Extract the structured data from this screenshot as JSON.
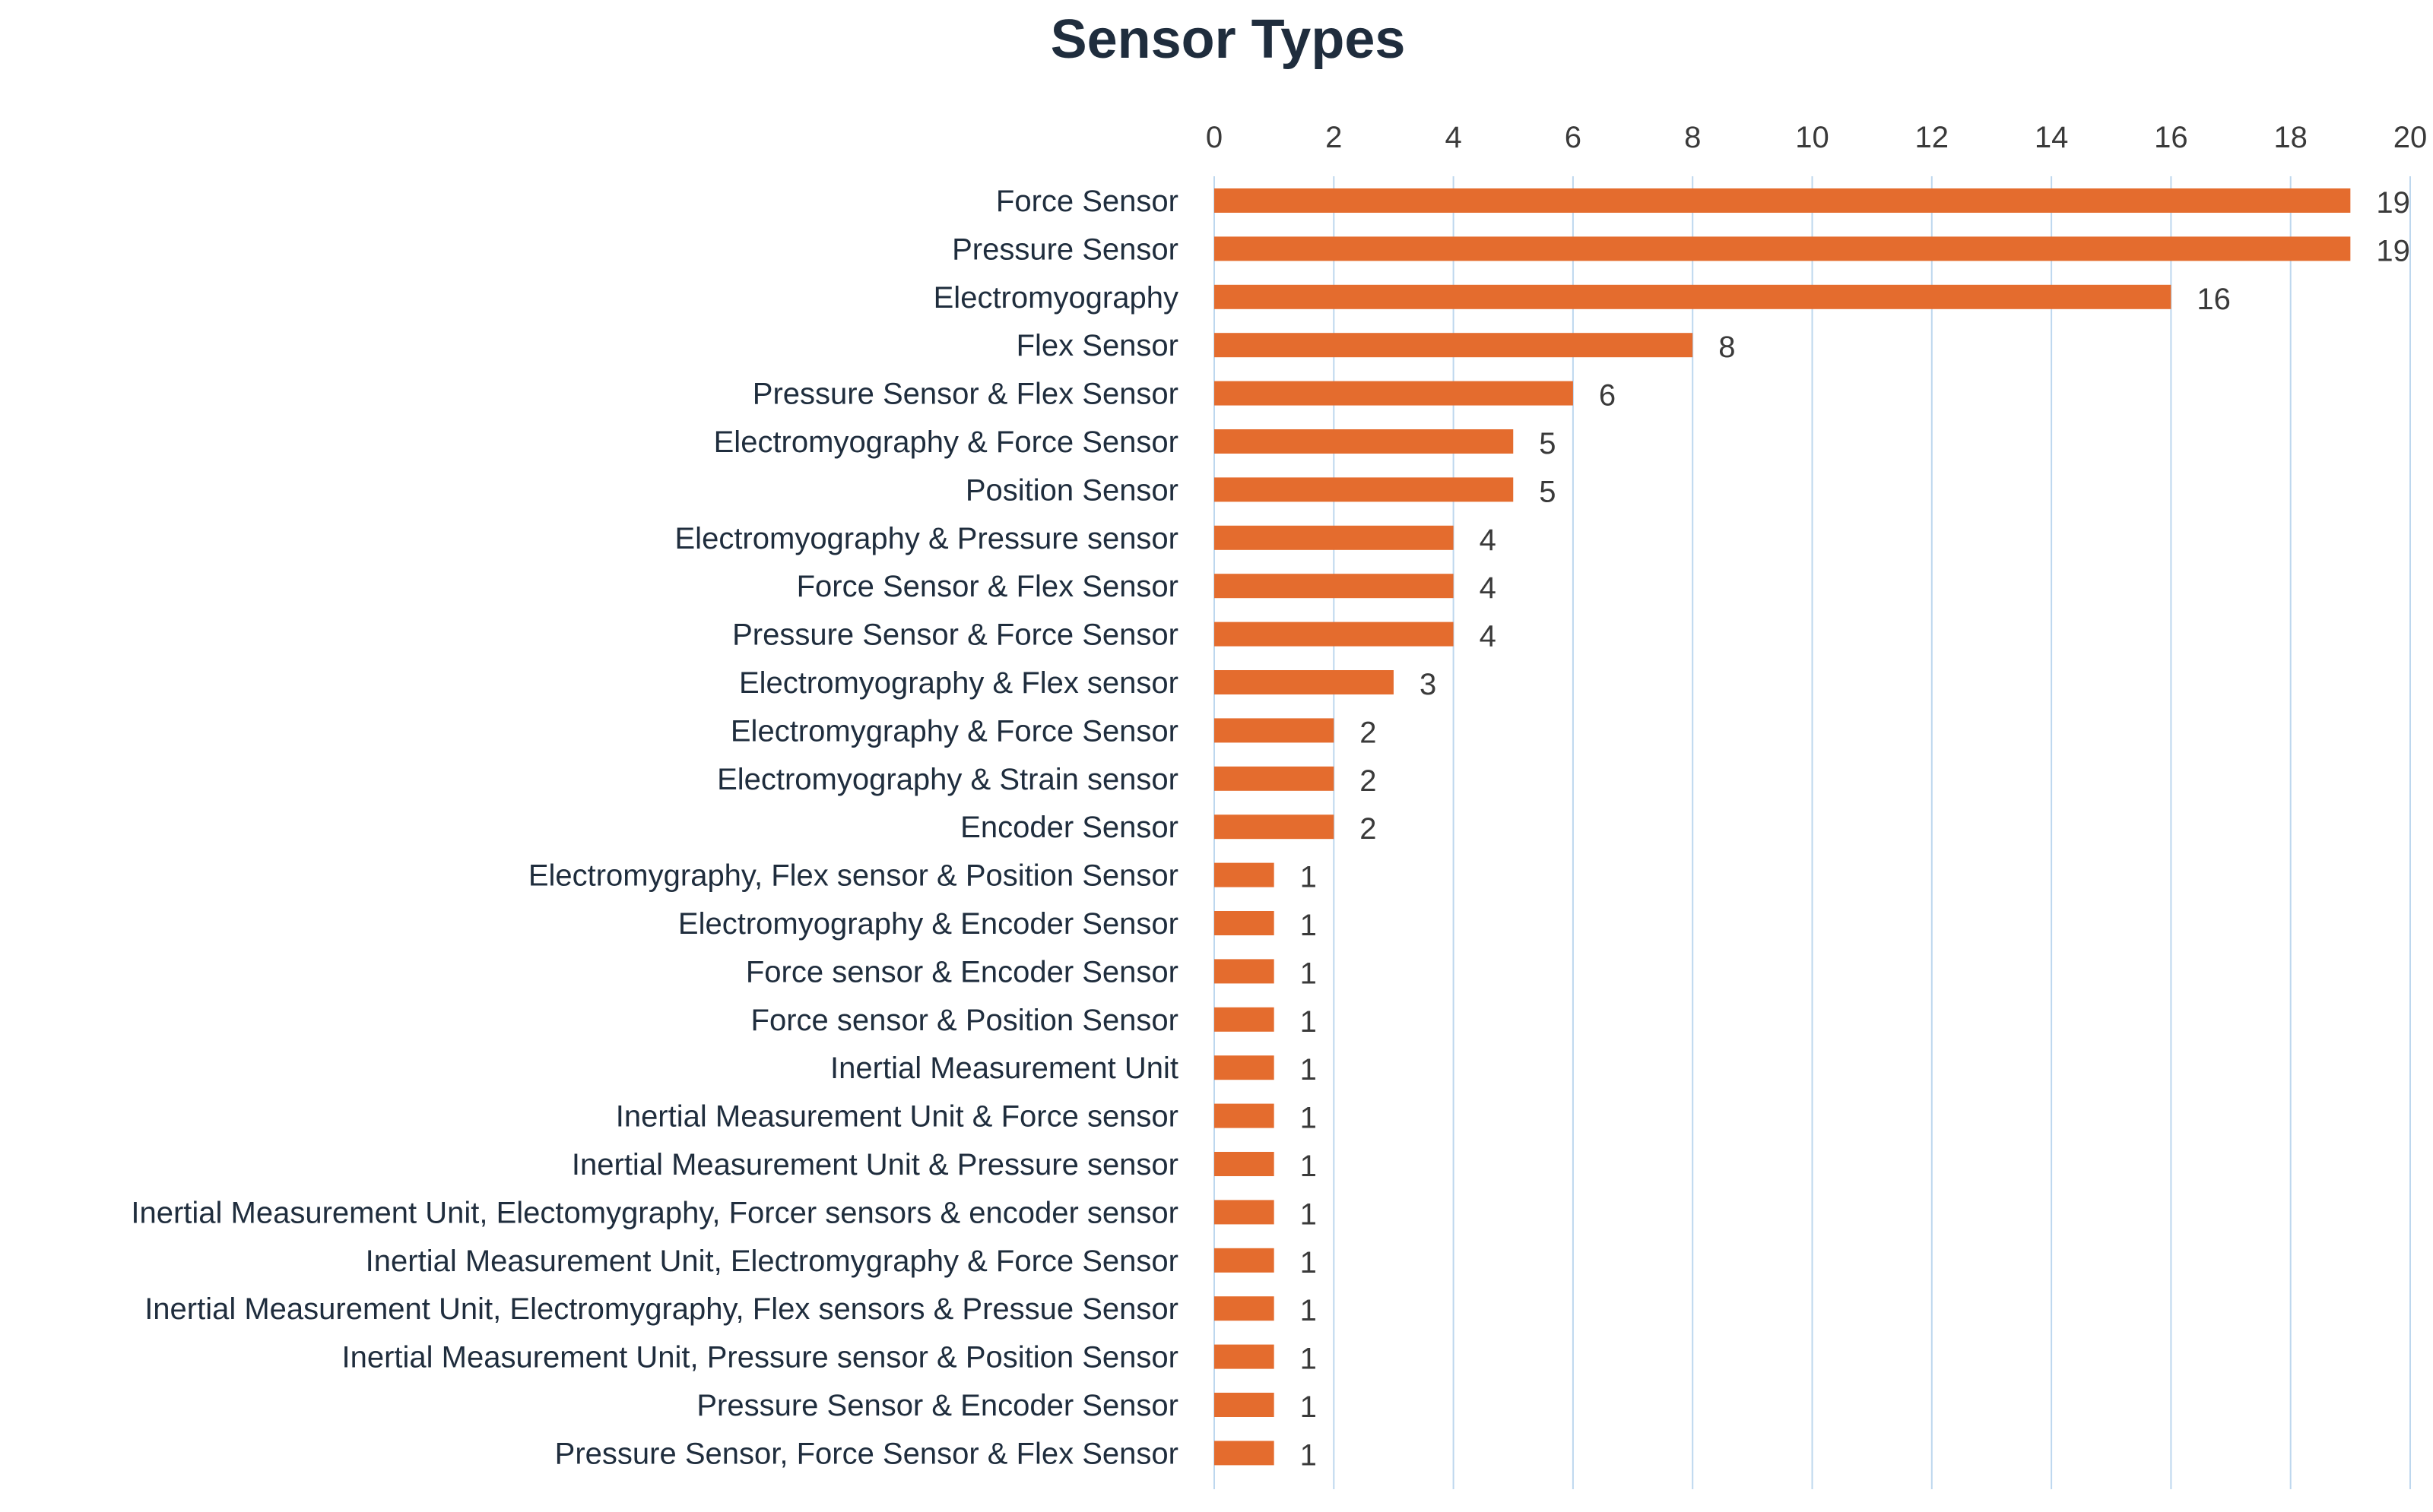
{
  "chart_data": {
    "type": "bar",
    "orientation": "horizontal",
    "title": "Sensor Types",
    "xlim": [
      0,
      20
    ],
    "ticks": [
      0,
      2,
      4,
      6,
      8,
      10,
      12,
      14,
      16,
      18,
      20
    ],
    "tick_labels": [
      "0",
      "2",
      "4",
      "6",
      "8",
      "10",
      "12",
      "14",
      "16",
      "18",
      "20"
    ],
    "axis_position": "top",
    "grid": true,
    "bar_color": "#E46C2E",
    "grid_color": "#BDD7EE",
    "categories": [
      "Force Sensor",
      "Pressure Sensor",
      "Electromyography",
      "Flex Sensor",
      "Pressure Sensor & Flex Sensor",
      "Electromyography & Force Sensor",
      "Position Sensor",
      "Electromyography & Pressure sensor",
      "Force Sensor & Flex Sensor",
      "Pressure Sensor & Force Sensor",
      "Electromyography & Flex sensor",
      "Electromygraphy & Force Sensor",
      "Electromyography & Strain sensor",
      "Encoder Sensor",
      "Electromygraphy, Flex sensor & Position Sensor",
      "Electromyography &  Encoder Sensor",
      "Force sensor & Encoder Sensor",
      "Force sensor & Position Sensor",
      "Inertial Measurement Unit",
      "Inertial Measurement Unit & Force sensor",
      "Inertial Measurement Unit & Pressure sensor",
      "Inertial Measurement Unit, Electomygraphy, Forcer sensors & encoder sensor",
      "Inertial Measurement Unit, Electromygraphy & Force Sensor",
      "Inertial Measurement Unit, Electromygraphy, Flex sensors & Pressue Sensor",
      "Inertial Measurement Unit, Pressure sensor & Position Sensor",
      "Pressure Sensor & Encoder Sensor",
      "Pressure Sensor, Force Sensor & Flex Sensor"
    ],
    "values": [
      19,
      19,
      16,
      8,
      6,
      5,
      5,
      4,
      4,
      4,
      3,
      2,
      2,
      2,
      1,
      1,
      1,
      1,
      1,
      1,
      1,
      1,
      1,
      1,
      1,
      1,
      1
    ]
  }
}
